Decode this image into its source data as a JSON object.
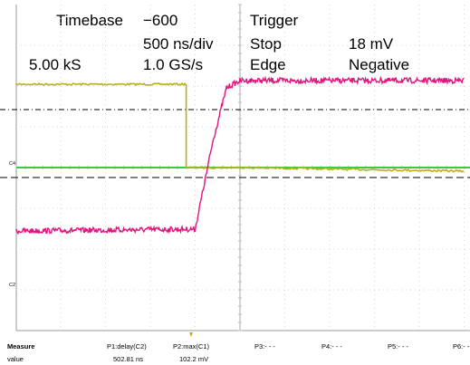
{
  "header": {
    "timebase_label": "Timebase",
    "timebase_value": "−600",
    "timebase_div": "500 ns/div",
    "samples": "5.00 kS",
    "sample_rate": "1.0 GS/s",
    "trigger_label": "Trigger",
    "trigger_mode": "Stop",
    "trigger_level": "18 mV",
    "trigger_type": "Edge",
    "trigger_slope": "Negative"
  },
  "traces": {
    "c4_label": "C4",
    "c2_label": "C2",
    "c1_color": "#b5b21c",
    "c2_color": "#e0157d",
    "c4_color": "#3ec83e",
    "c1_waveform": [
      [
        -2500,
        0.92
      ],
      [
        -600,
        0.92
      ],
      [
        -600,
        0.0
      ],
      [
        0,
        0.0
      ],
      [
        2500,
        -0.04
      ]
    ],
    "c2_waveform": [
      [
        -2500,
        -0.7
      ],
      [
        -500,
        -0.68
      ],
      [
        -300,
        0.3
      ],
      [
        -150,
        0.88
      ],
      [
        0,
        0.96
      ],
      [
        2500,
        0.96
      ]
    ],
    "c4_level": 0.0
  },
  "measure": {
    "title": "Measure",
    "row_label": "value",
    "params": [
      {
        "name": "P1:delay(C2)",
        "value": "502.81 ns"
      },
      {
        "name": "P2:max(C1)",
        "value": "102.2 mV"
      },
      {
        "name": "P3:- - -",
        "value": ""
      },
      {
        "name": "P4:- - -",
        "value": ""
      },
      {
        "name": "P5:- - -",
        "value": ""
      },
      {
        "name": "P6:- -",
        "value": ""
      }
    ]
  }
}
